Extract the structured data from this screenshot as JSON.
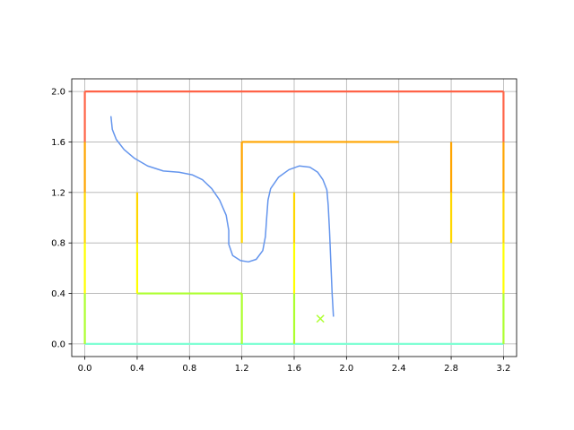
{
  "chart_data": {
    "type": "line",
    "title": "",
    "xlabel": "",
    "ylabel": "",
    "xlim": [
      -0.1,
      3.3
    ],
    "ylim": [
      -0.1,
      2.1
    ],
    "grid": true,
    "x_ticks": [
      0.0,
      0.4,
      0.8,
      1.2,
      1.6,
      2.0,
      2.4,
      2.8,
      3.2
    ],
    "y_ticks": [
      0.0,
      0.4,
      0.8,
      1.2,
      1.6,
      2.0
    ],
    "x_tick_labels": [
      "0.0",
      "0.4",
      "0.8",
      "1.2",
      "1.6",
      "2.0",
      "2.4",
      "2.8",
      "3.2"
    ],
    "y_tick_labels": [
      "0.0",
      "0.4",
      "0.8",
      "1.2",
      "1.6",
      "2.0"
    ],
    "colors": {
      "level_0": "#7fffd4",
      "level_0_4": "#adff2f",
      "level_0_8": "#ffff00",
      "level_1_2": "#ffd700",
      "level_1_6": "#ffa500",
      "level_2_0": "#ff6347",
      "path": "#6495ed",
      "goal": "#adff2f"
    },
    "walls": [
      {
        "points": [
          [
            0,
            0
          ],
          [
            3.2,
            0
          ]
        ],
        "color": "#7fffd4"
      },
      {
        "points": [
          [
            0,
            2.0
          ],
          [
            3.2,
            2.0
          ]
        ],
        "color": "#ff6347"
      },
      {
        "points": [
          [
            0,
            1.6
          ],
          [
            0,
            2.0
          ]
        ],
        "color": "#ff6347"
      },
      {
        "points": [
          [
            3.2,
            1.6
          ],
          [
            3.2,
            2.0
          ]
        ],
        "color": "#ff6347"
      },
      {
        "points": [
          [
            0,
            1.2
          ],
          [
            0,
            1.6
          ]
        ],
        "color": "#ffa500"
      },
      {
        "points": [
          [
            3.2,
            1.2
          ],
          [
            3.2,
            1.6
          ]
        ],
        "color": "#ffa500"
      },
      {
        "points": [
          [
            0,
            0.8
          ],
          [
            0,
            1.2
          ]
        ],
        "color": "#ffd700"
      },
      {
        "points": [
          [
            3.2,
            0.8
          ],
          [
            3.2,
            1.2
          ]
        ],
        "color": "#ffd700"
      },
      {
        "points": [
          [
            0,
            0.4
          ],
          [
            0,
            0.8
          ]
        ],
        "color": "#ffff00"
      },
      {
        "points": [
          [
            3.2,
            0.4
          ],
          [
            3.2,
            0.8
          ]
        ],
        "color": "#ffff00"
      },
      {
        "points": [
          [
            0,
            0
          ],
          [
            0,
            0.4
          ]
        ],
        "color": "#adff2f"
      },
      {
        "points": [
          [
            3.2,
            0
          ],
          [
            3.2,
            0.4
          ]
        ],
        "color": "#adff2f"
      },
      {
        "points": [
          [
            0.4,
            0.4
          ],
          [
            1.2,
            0.4
          ]
        ],
        "color": "#adff2f"
      },
      {
        "points": [
          [
            1.2,
            0
          ],
          [
            1.2,
            0.4
          ]
        ],
        "color": "#adff2f"
      },
      {
        "points": [
          [
            0.4,
            0.4
          ],
          [
            0.4,
            0.8
          ]
        ],
        "color": "#ffff00"
      },
      {
        "points": [
          [
            0.4,
            0.8
          ],
          [
            0.4,
            1.2
          ]
        ],
        "color": "#ffd700"
      },
      {
        "points": [
          [
            1.6,
            0
          ],
          [
            1.6,
            0.4
          ]
        ],
        "color": "#adff2f"
      },
      {
        "points": [
          [
            1.6,
            0.4
          ],
          [
            1.6,
            0.8
          ]
        ],
        "color": "#ffff00"
      },
      {
        "points": [
          [
            1.6,
            0.8
          ],
          [
            1.6,
            1.2
          ]
        ],
        "color": "#ffd700"
      },
      {
        "points": [
          [
            1.2,
            0.8
          ],
          [
            1.2,
            1.2
          ]
        ],
        "color": "#ffd700"
      },
      {
        "points": [
          [
            1.2,
            1.2
          ],
          [
            1.2,
            1.6
          ]
        ],
        "color": "#ffa500"
      },
      {
        "points": [
          [
            1.2,
            1.6
          ],
          [
            2.4,
            1.6
          ]
        ],
        "color": "#ffa500"
      },
      {
        "points": [
          [
            2.8,
            0.8
          ],
          [
            2.8,
            1.2
          ]
        ],
        "color": "#ffd700"
      },
      {
        "points": [
          [
            2.8,
            1.2
          ],
          [
            2.8,
            1.6
          ]
        ],
        "color": "#ffa500"
      }
    ],
    "path": {
      "color": "#6495ed",
      "x": [
        0.2,
        0.21,
        0.24,
        0.3,
        0.38,
        0.48,
        0.6,
        0.72,
        0.82,
        0.9,
        0.97,
        1.03,
        1.08,
        1.1,
        1.1,
        1.13,
        1.19,
        1.25,
        1.31,
        1.36,
        1.38,
        1.39,
        1.4,
        1.42,
        1.48,
        1.56,
        1.64,
        1.72,
        1.78,
        1.82,
        1.85,
        1.86,
        1.87,
        1.88,
        1.89,
        1.9
      ],
      "y": [
        1.8,
        1.7,
        1.62,
        1.54,
        1.47,
        1.41,
        1.37,
        1.36,
        1.34,
        1.3,
        1.23,
        1.14,
        1.02,
        0.9,
        0.79,
        0.7,
        0.66,
        0.65,
        0.67,
        0.74,
        0.85,
        1.0,
        1.14,
        1.23,
        1.32,
        1.38,
        1.41,
        1.4,
        1.36,
        1.3,
        1.22,
        1.1,
        0.9,
        0.65,
        0.4,
        0.22
      ]
    },
    "goal_marker": {
      "x": 1.8,
      "y": 0.2,
      "symbol": "x",
      "color": "#adff2f"
    }
  }
}
